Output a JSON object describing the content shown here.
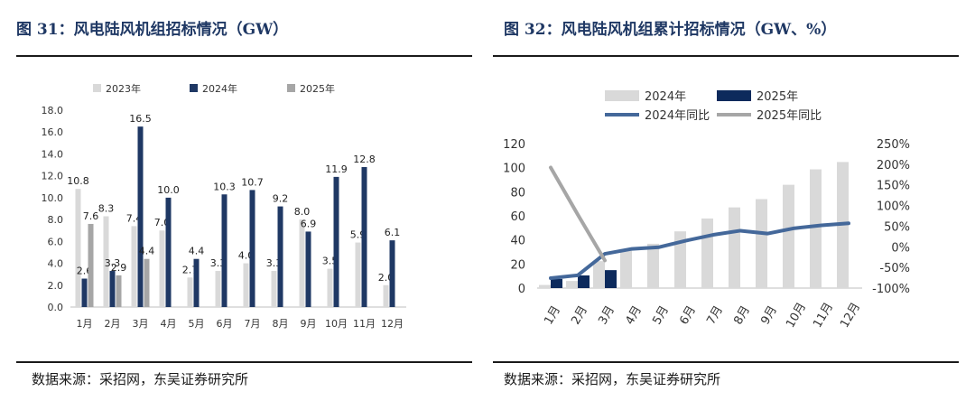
{
  "left": {
    "title": "图 31：风电陆风机组招标情况（GW）",
    "source": "数据来源：采招网，东吴证券研究所"
  },
  "right": {
    "title": "图 32：风电陆风机组累计招标情况（GW、%）",
    "source": "数据来源：采招网，东吴证券研究所"
  },
  "colors": {
    "c2023": "#d9d9d9",
    "c2024": "#1f3864",
    "c2025": "#a6a6a6",
    "cum2024": "#d9d9d9",
    "cum2025": "#0d2a5c",
    "yoy2024": "#44689a",
    "yoy2025": "#a6a6a6"
  },
  "chart_data": [
    {
      "type": "bar",
      "categories": [
        "1月",
        "2月",
        "3月",
        "4月",
        "5月",
        "6月",
        "7月",
        "8月",
        "9月",
        "10月",
        "11月",
        "12月"
      ],
      "series": [
        {
          "name": "2023年",
          "values": [
            10.8,
            8.3,
            7.4,
            7.0,
            2.7,
            3.3,
            4.0,
            3.3,
            8.0,
            3.5,
            5.9,
            2.0
          ]
        },
        {
          "name": "2024年",
          "values": [
            2.6,
            3.3,
            16.5,
            10.0,
            4.4,
            10.3,
            10.7,
            9.2,
            6.9,
            11.9,
            12.8,
            6.1
          ]
        },
        {
          "name": "2025年",
          "values": [
            7.6,
            2.9,
            4.4,
            null,
            null,
            null,
            null,
            null,
            null,
            null,
            null,
            null
          ]
        }
      ],
      "data_labels": [
        [
          "10.8",
          "8.3",
          "7.4",
          "7.0",
          "2.7",
          "3.3",
          "4.0",
          "3.3",
          "8.0",
          "3.5",
          "5.9",
          "2.0"
        ],
        [
          "2.6",
          "3.3",
          "16.5",
          "10.0",
          "4.4",
          "10.3",
          "10.7",
          "9.2",
          "6.9",
          "11.9",
          "12.8",
          "6.1"
        ],
        [
          "7.6",
          "2.9",
          "4.4",
          "",
          "",
          "",
          "",
          "",
          "",
          "",
          "",
          ""
        ]
      ],
      "ylim": [
        0,
        18
      ],
      "yticks": [
        "0.0",
        "2.0",
        "4.0",
        "6.0",
        "8.0",
        "10.0",
        "12.0",
        "14.0",
        "16.0",
        "18.0"
      ],
      "grid": false,
      "legend": "top"
    },
    {
      "type": "bar",
      "categories": [
        "1月",
        "2月",
        "3月",
        "4月",
        "5月",
        "6月",
        "7月",
        "8月",
        "9月",
        "10月",
        "11月",
        "12月"
      ],
      "series": [
        {
          "name": "2024年",
          "values": [
            2.6,
            5.9,
            22.4,
            32.4,
            36.8,
            47.1,
            57.8,
            67.0,
            73.9,
            85.8,
            98.6,
            104.7
          ]
        },
        {
          "name": "2025年",
          "values": [
            7.6,
            10.5,
            14.9,
            null,
            null,
            null,
            null,
            null,
            null,
            null,
            null,
            null
          ]
        },
        {
          "name": "2024年同比",
          "type": "line",
          "axis": "right",
          "values": [
            -76,
            -69,
            -17,
            -5,
            -1,
            15,
            29,
            39,
            32,
            45,
            52,
            57
          ]
        },
        {
          "name": "2025年同比",
          "type": "line",
          "axis": "right",
          "values": [
            192,
            78,
            -33,
            null,
            null,
            null,
            null,
            null,
            null,
            null,
            null,
            null
          ]
        }
      ],
      "ylim": [
        0,
        120
      ],
      "yticks": [
        "0",
        "20",
        "40",
        "60",
        "80",
        "100",
        "120"
      ],
      "y2lim": [
        -100,
        250
      ],
      "y2ticks": [
        "-100%",
        "-50%",
        "0%",
        "50%",
        "100%",
        "150%",
        "200%",
        "250%"
      ],
      "grid": false,
      "legend": "top"
    }
  ]
}
